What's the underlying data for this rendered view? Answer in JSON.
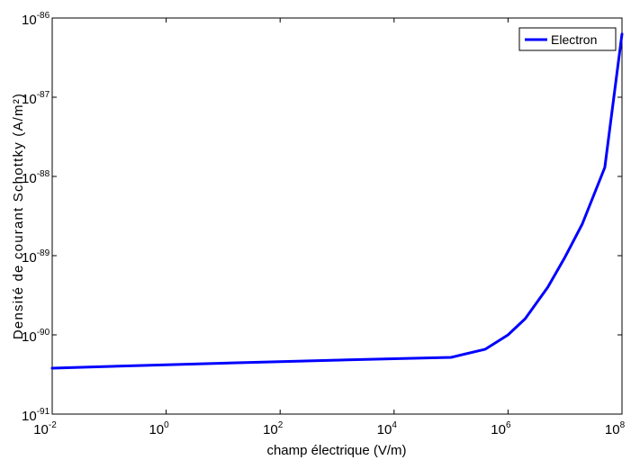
{
  "chart_data": {
    "type": "line",
    "title": "",
    "xlabel": "champ électrique (V/m)",
    "ylabel": "Densité de courant Schottky (A/m²)",
    "x_scale": "log",
    "y_scale": "log",
    "xlim": [
      0.01,
      100000000
    ],
    "ylim": [
      1e-91,
      1e-86
    ],
    "x_ticks": [
      {
        "base": "10",
        "exp": "-2"
      },
      {
        "base": "10",
        "exp": "0"
      },
      {
        "base": "10",
        "exp": "2"
      },
      {
        "base": "10",
        "exp": "4"
      },
      {
        "base": "10",
        "exp": "6"
      },
      {
        "base": "10",
        "exp": "8"
      }
    ],
    "y_ticks": [
      {
        "base": "10",
        "exp": "-91"
      },
      {
        "base": "10",
        "exp": "-90"
      },
      {
        "base": "10",
        "exp": "-89"
      },
      {
        "base": "10",
        "exp": "-88"
      },
      {
        "base": "10",
        "exp": "-87"
      },
      {
        "base": "10",
        "exp": "-86"
      }
    ],
    "grid": false,
    "legend_position": "top-right",
    "series": [
      {
        "name": "Electron",
        "color": "#0000ff",
        "x": [
          0.01,
          1,
          100,
          10000,
          100000,
          400000,
          1000000,
          2000000,
          5000000,
          10000000,
          20000000,
          50000000,
          100000000
        ],
        "y": [
          3.8e-91,
          4.2e-91,
          4.6e-91,
          5e-91,
          5.2e-91,
          6.6e-91,
          1e-90,
          1.6e-90,
          4e-90,
          9.6e-90,
          2.5e-89,
          1.3e-88,
          6.3e-87
        ]
      }
    ]
  }
}
